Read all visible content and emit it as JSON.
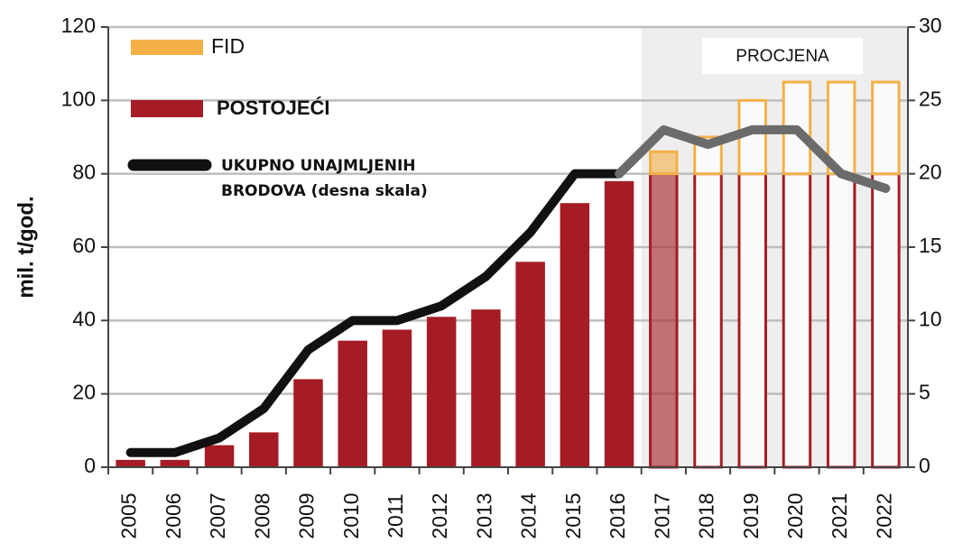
{
  "chart_data": {
    "type": "bar",
    "categories": [
      "2005",
      "2006",
      "2007",
      "2008",
      "2009",
      "2010",
      "2011",
      "2012",
      "2013",
      "2014",
      "2015",
      "2016",
      "2017",
      "2018",
      "2019",
      "2020",
      "2021",
      "2022"
    ],
    "series": [
      {
        "name": "POSTOJEĆI",
        "color": "#a51c24",
        "values": [
          2,
          2,
          6,
          9.5,
          24,
          34.5,
          37.5,
          41,
          43,
          56,
          72,
          78,
          80,
          80,
          80,
          80,
          80,
          80
        ]
      },
      {
        "name": "FID",
        "color": "#f4b046",
        "values": [
          null,
          null,
          null,
          null,
          null,
          null,
          null,
          null,
          null,
          null,
          null,
          null,
          6,
          10,
          20,
          25,
          25,
          25
        ]
      },
      {
        "name": "UKUPNO UNAJMLJENIH BRODOVA (desna skala)",
        "color": "#111111",
        "estimate_color": "#6b6b6b",
        "type": "line",
        "axis": "y2",
        "values": [
          1,
          1,
          2,
          4,
          8,
          10,
          10,
          11,
          13,
          16,
          20,
          20,
          23,
          22,
          23,
          23,
          20,
          19
        ]
      }
    ],
    "ylabel": "mil. t/god.",
    "ylim": [
      0,
      120
    ],
    "yticks": [
      0,
      20,
      40,
      60,
      80,
      100,
      120
    ],
    "y2lim": [
      0,
      30
    ],
    "y2ticks": [
      0,
      5,
      10,
      15,
      20,
      25,
      30
    ],
    "grid": true,
    "estimate": {
      "label": "PROCJENA",
      "from": "2017",
      "color": "#eeeeee"
    }
  }
}
